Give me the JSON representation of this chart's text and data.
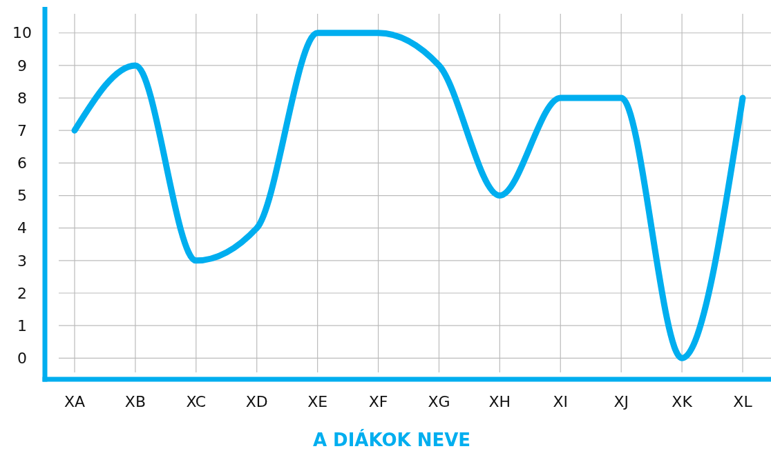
{
  "chart_data": {
    "type": "line",
    "xlabel": "A DIÁKOK NEVE",
    "categories": [
      "XA",
      "XB",
      "XC",
      "XD",
      "XE",
      "XF",
      "XG",
      "XH",
      "XI",
      "XJ",
      "XK",
      "XL"
    ],
    "series": [
      {
        "color": "#00aeef",
        "values": [
          7,
          9,
          3,
          4,
          10,
          10,
          9,
          5,
          8,
          8,
          0,
          8
        ]
      }
    ],
    "ylim": [
      -0.65,
      10.8
    ],
    "yticks": [
      0,
      1,
      2,
      3,
      4,
      5,
      6,
      7,
      8,
      9,
      10
    ],
    "grid": true
  }
}
